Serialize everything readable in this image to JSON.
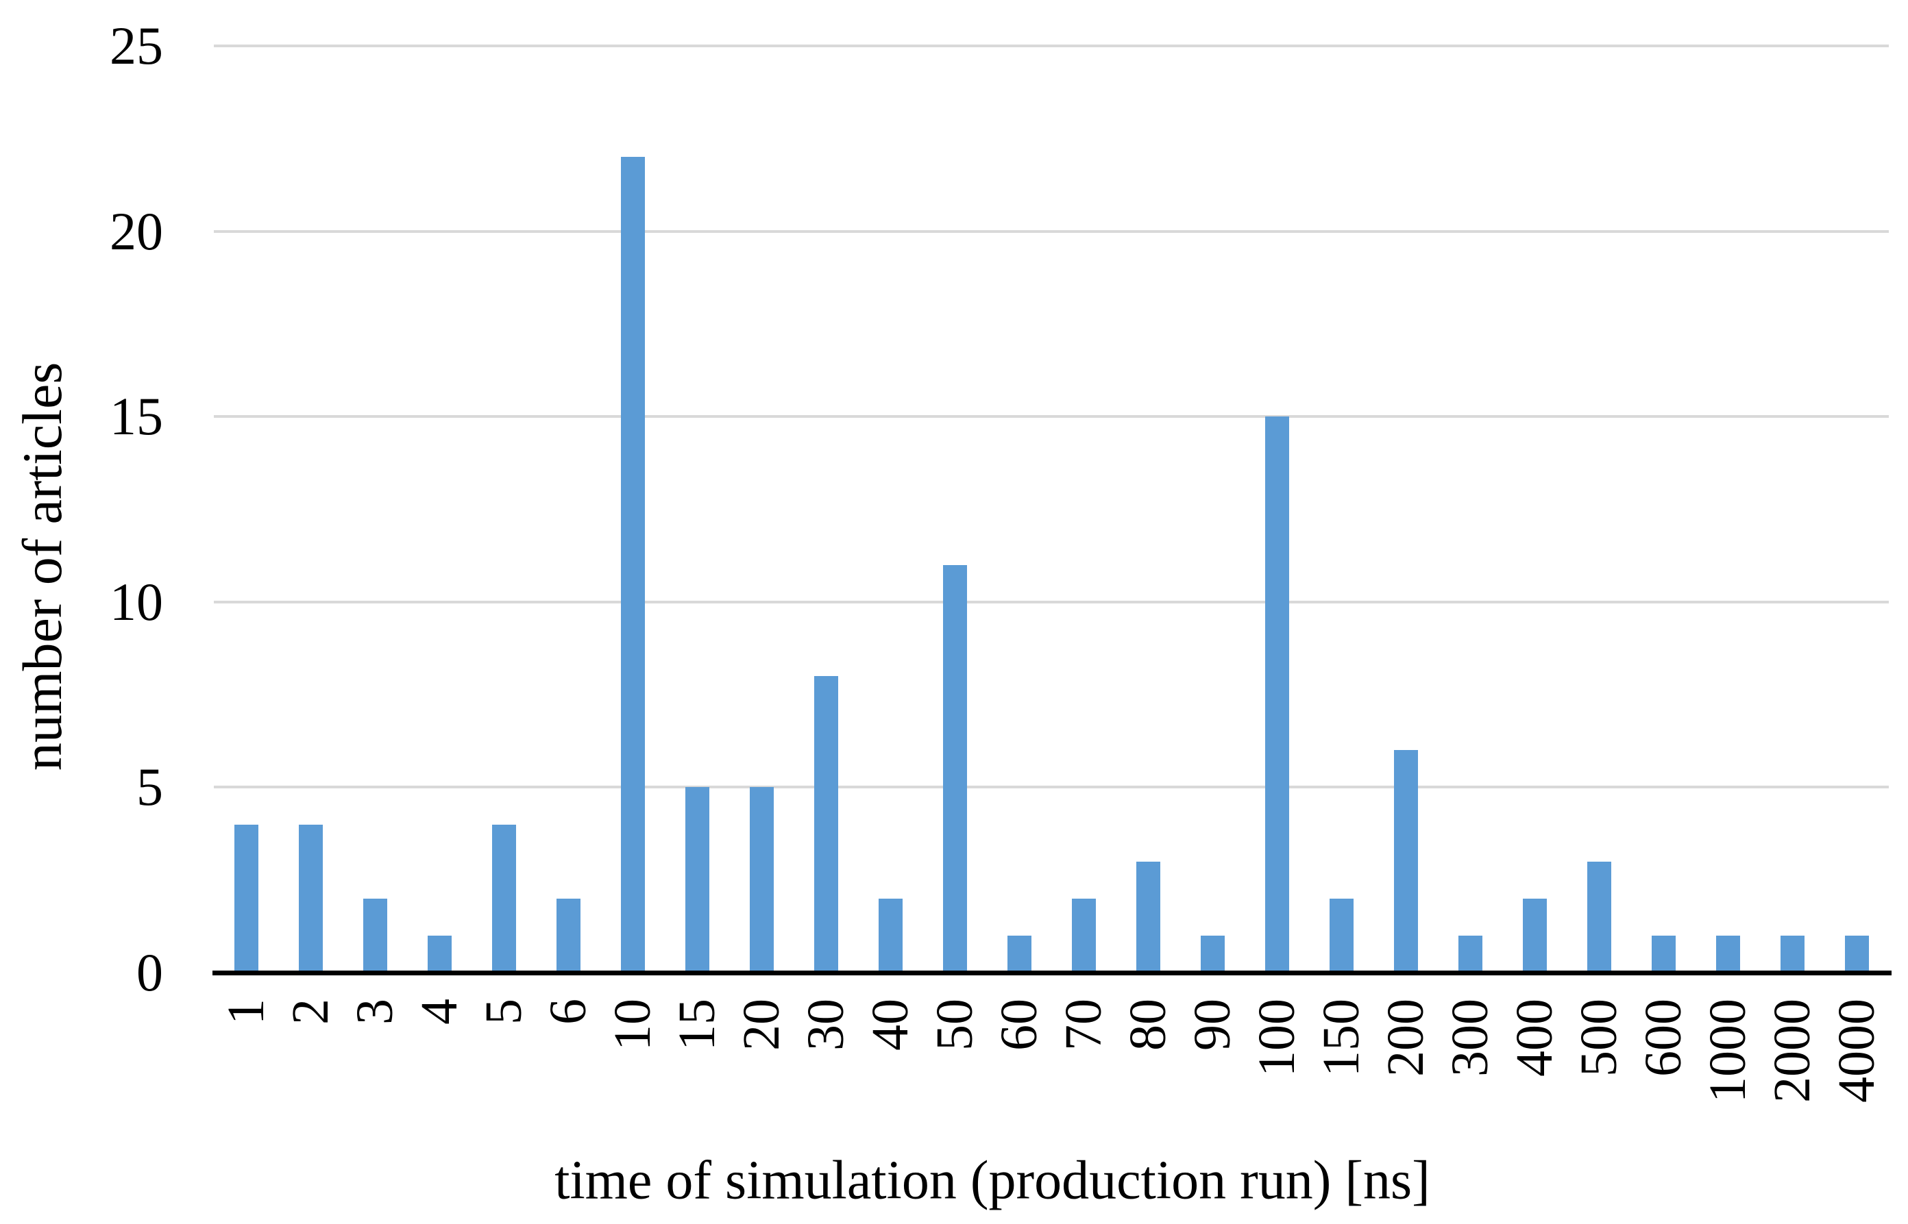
{
  "chart_data": {
    "type": "bar",
    "title": "",
    "categories": [
      "1",
      "2",
      "3",
      "4",
      "5",
      "6",
      "10",
      "15",
      "20",
      "30",
      "40",
      "50",
      "60",
      "70",
      "80",
      "90",
      "100",
      "150",
      "200",
      "300",
      "400",
      "500",
      "600",
      "1000",
      "2000",
      "4000"
    ],
    "values": [
      4,
      4,
      2,
      1,
      4,
      2,
      22,
      5,
      5,
      8,
      2,
      11,
      1,
      2,
      3,
      1,
      15,
      2,
      6,
      1,
      2,
      3,
      1,
      1,
      1,
      1
    ],
    "xlabel": "time of simulation (production run) [ns]",
    "ylabel": "number of articles",
    "ylim": [
      0,
      25
    ],
    "yticks": [
      0,
      5,
      10,
      15,
      20,
      25
    ],
    "grid": "horizontal gridlines at each y tick",
    "legend": "none",
    "bar_color": "#5B9BD5",
    "gridline_color": "#D9D9D9",
    "axis_color": "#000000",
    "background_color": "#FFFFFF"
  }
}
